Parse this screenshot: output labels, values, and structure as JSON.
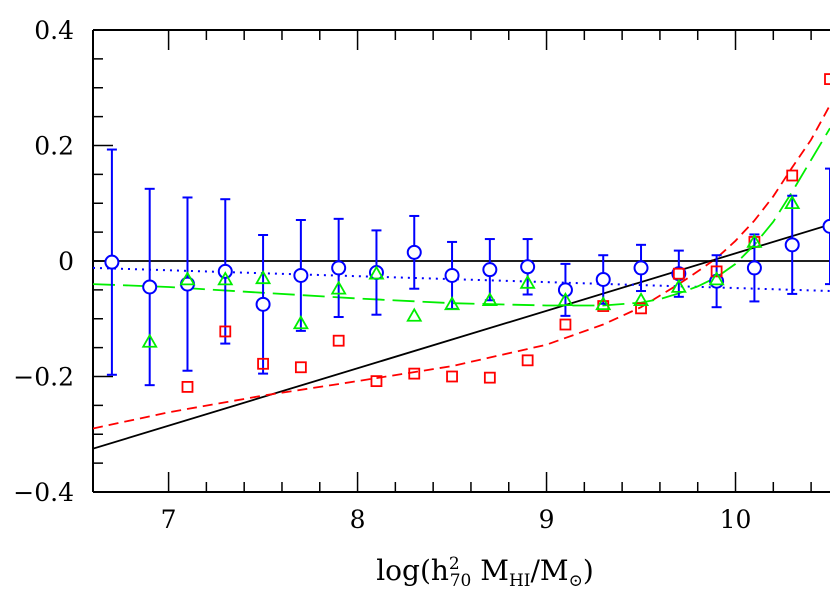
{
  "chart_data": {
    "type": "scatter",
    "title": "",
    "xlabel": "log(h²₇₀ M_HI/M_⊙)",
    "ylabel": "",
    "xlim": [
      6.6,
      10.5
    ],
    "ylim": [
      -0.4,
      0.4
    ],
    "grid": false,
    "x_ticks": [
      "7",
      "8",
      "9",
      "10"
    ],
    "y_ticks": [
      "0.4",
      "0.2",
      "0",
      "−0.2",
      "−0.4"
    ],
    "xlabel_parts": {
      "pre": "log(h",
      "sup": "2",
      "sub": "70",
      "mid": " M",
      "hi": "HI",
      "post": "/M",
      "sun": "⊙",
      "end": ")"
    },
    "series": [
      {
        "marker": "circle",
        "color": "#0000ff",
        "x": [
          6.7,
          6.9,
          7.1,
          7.3,
          7.5,
          7.7,
          7.9,
          8.1,
          8.3,
          8.5,
          8.7,
          8.9,
          9.1,
          9.3,
          9.5,
          9.7,
          9.9,
          10.1,
          10.3,
          10.5
        ],
        "y": [
          -0.002,
          -0.045,
          -0.04,
          -0.018,
          -0.075,
          -0.025,
          -0.012,
          -0.02,
          0.015,
          -0.025,
          -0.015,
          -0.01,
          -0.05,
          -0.032,
          -0.012,
          -0.022,
          -0.035,
          -0.012,
          0.028,
          0.06
        ],
        "err": [
          0.195,
          0.17,
          0.15,
          0.125,
          0.12,
          0.096,
          0.085,
          0.073,
          0.063,
          0.058,
          0.053,
          0.048,
          0.045,
          0.042,
          0.04,
          0.04,
          0.045,
          0.058,
          0.085,
          0.1
        ]
      },
      {
        "marker": "square",
        "color": "#ff0000",
        "x": [
          7.1,
          7.3,
          7.5,
          7.7,
          7.9,
          8.1,
          8.3,
          8.5,
          8.7,
          8.9,
          9.1,
          9.3,
          9.5,
          9.7,
          9.9,
          10.1,
          10.3,
          10.5
        ],
        "y": [
          -0.218,
          -0.122,
          -0.178,
          -0.184,
          -0.138,
          -0.208,
          -0.195,
          -0.2,
          -0.202,
          -0.172,
          -0.11,
          -0.078,
          -0.082,
          -0.022,
          -0.018,
          0.033,
          0.148,
          0.315
        ]
      },
      {
        "marker": "triangle",
        "color": "#00ee00",
        "x": [
          6.9,
          7.1,
          7.3,
          7.5,
          7.7,
          7.9,
          8.1,
          8.3,
          8.5,
          8.7,
          8.9,
          9.1,
          9.3,
          9.5,
          9.7,
          9.9,
          10.1,
          10.3
        ],
        "y": [
          -0.14,
          -0.032,
          -0.032,
          -0.03,
          -0.108,
          -0.048,
          -0.022,
          -0.095,
          -0.075,
          -0.068,
          -0.038,
          -0.068,
          -0.075,
          -0.068,
          -0.045,
          -0.032,
          0.033,
          0.1
        ]
      }
    ],
    "lines": [
      {
        "style": "solid",
        "color": "#000000",
        "x": [
          6.6,
          10.5
        ],
        "y": [
          -0.325,
          0.063
        ]
      },
      {
        "style": "dotted",
        "color": "#0000ff",
        "x": [
          6.6,
          10.5
        ],
        "y": [
          -0.012,
          -0.052
        ]
      },
      {
        "style": "shortdash",
        "color": "#ff0000",
        "x": [
          6.6,
          7.0,
          7.5,
          8.0,
          8.5,
          9.0,
          9.3,
          9.5,
          9.7,
          9.8,
          9.9,
          10.0,
          10.1,
          10.2,
          10.3,
          10.4,
          10.5
        ],
        "y": [
          -0.29,
          -0.262,
          -0.233,
          -0.208,
          -0.182,
          -0.145,
          -0.11,
          -0.08,
          -0.04,
          -0.018,
          0.005,
          0.035,
          0.07,
          0.112,
          0.162,
          0.21,
          0.27
        ]
      },
      {
        "style": "longdash",
        "color": "#00ee00",
        "x": [
          6.6,
          7.0,
          7.5,
          8.0,
          8.5,
          9.0,
          9.3,
          9.5,
          9.6,
          9.7,
          9.8,
          9.9,
          10.0,
          10.1,
          10.2,
          10.3,
          10.4,
          10.5
        ],
        "y": [
          -0.04,
          -0.045,
          -0.055,
          -0.065,
          -0.073,
          -0.077,
          -0.077,
          -0.072,
          -0.066,
          -0.056,
          -0.044,
          -0.028,
          -0.005,
          0.028,
          0.068,
          0.12,
          0.175,
          0.23
        ]
      },
      {
        "style": "solid",
        "color": "#000000",
        "x": [
          6.6,
          10.5
        ],
        "y": [
          0,
          0
        ]
      }
    ]
  }
}
